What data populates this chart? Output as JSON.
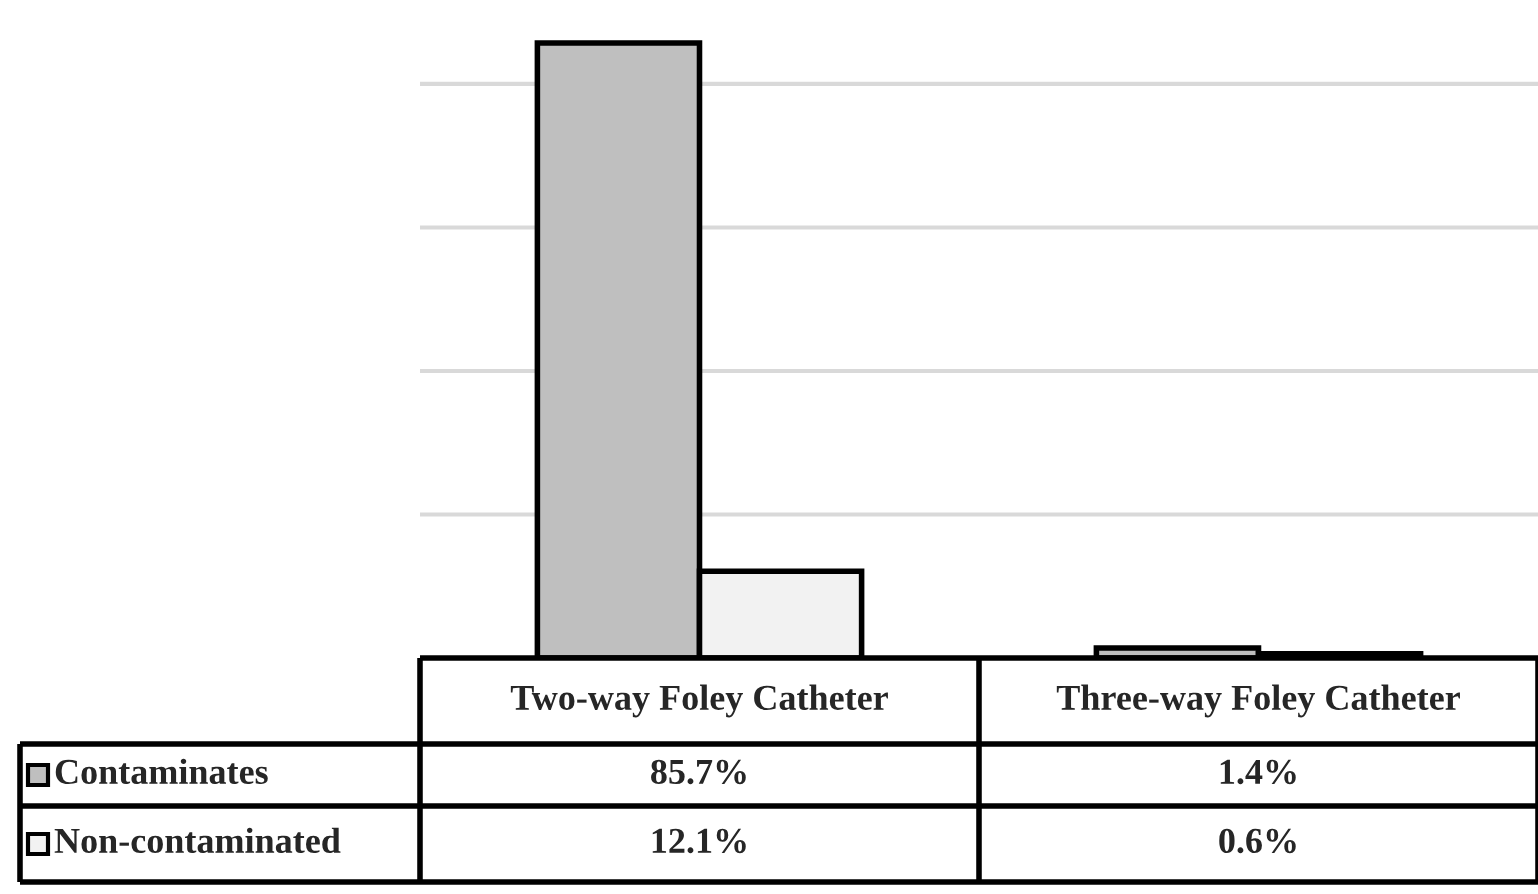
{
  "chart_data": {
    "type": "bar",
    "grid": "y",
    "legend": "bottom left",
    "tick_labels": false,
    "categories": [
      "Two-way Foley Catheter",
      "Three-way Foley Catheter"
    ],
    "series": [
      {
        "name": "Contaminates",
        "color": "#bfbfbf",
        "values": [
          85.7,
          1.4
        ],
        "value_labels": [
          "85.7%",
          "1.4%"
        ]
      },
      {
        "name": "Non-contaminated",
        "color": "#f2f2f2",
        "values": [
          12.1,
          0.6
        ],
        "value_labels": [
          "12.1%",
          "0.6%"
        ]
      }
    ]
  }
}
